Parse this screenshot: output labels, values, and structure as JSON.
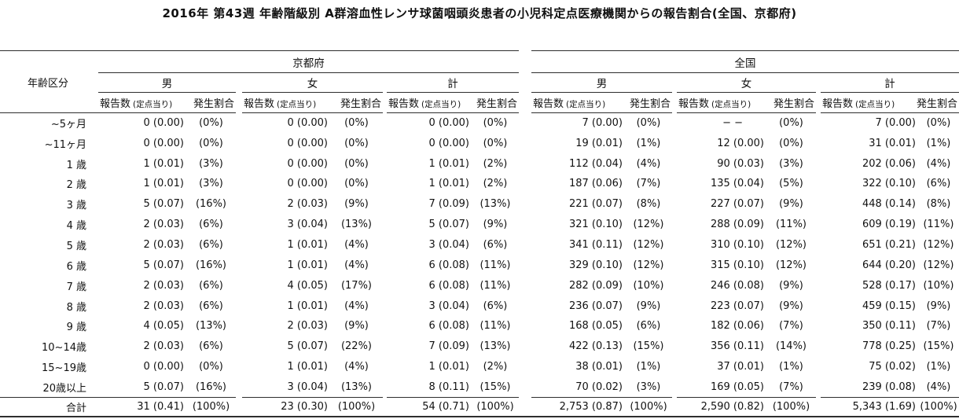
{
  "title": "2016年 第43週 年齢階級別 A群溶血性レンサ球菌咽頭炎患者の小児科定点医療機関からの報告割合(全国、京都府)",
  "table": {
    "header": {
      "age": "年齢区分",
      "regions": [
        "京都府",
        "全国"
      ],
      "genders": [
        "男",
        "女",
        "計"
      ],
      "count": "報告数",
      "count_sub": "(定点当り)",
      "pct": "発生割合"
    },
    "rows": [
      {
        "age": "~5ヶ月",
        "cells": [
          [
            "0 (0.00)",
            "(0%)"
          ],
          [
            "0 (0.00)",
            "(0%)"
          ],
          [
            "0 (0.00)",
            "(0%)"
          ],
          [
            "7 (0.00)",
            "(0%)"
          ],
          [
            "− −",
            "(0%)"
          ],
          [
            "7 (0.00)",
            "(0%)"
          ]
        ]
      },
      {
        "age": "~11ヶ月",
        "cells": [
          [
            "0 (0.00)",
            "(0%)"
          ],
          [
            "0 (0.00)",
            "(0%)"
          ],
          [
            "0 (0.00)",
            "(0%)"
          ],
          [
            "19 (0.01)",
            "(1%)"
          ],
          [
            "12 (0.00)",
            "(0%)"
          ],
          [
            "31 (0.01)",
            "(1%)"
          ]
        ]
      },
      {
        "age": "1 歳",
        "cells": [
          [
            "1 (0.01)",
            "(3%)"
          ],
          [
            "0 (0.00)",
            "(0%)"
          ],
          [
            "1 (0.01)",
            "(2%)"
          ],
          [
            "112 (0.04)",
            "(4%)"
          ],
          [
            "90 (0.03)",
            "(3%)"
          ],
          [
            "202 (0.06)",
            "(4%)"
          ]
        ]
      },
      {
        "age": "2 歳",
        "cells": [
          [
            "1 (0.01)",
            "(3%)"
          ],
          [
            "0 (0.00)",
            "(0%)"
          ],
          [
            "1 (0.01)",
            "(2%)"
          ],
          [
            "187 (0.06)",
            "(7%)"
          ],
          [
            "135 (0.04)",
            "(5%)"
          ],
          [
            "322 (0.10)",
            "(6%)"
          ]
        ]
      },
      {
        "age": "3 歳",
        "cells": [
          [
            "5 (0.07)",
            "(16%)"
          ],
          [
            "2 (0.03)",
            "(9%)"
          ],
          [
            "7 (0.09)",
            "(13%)"
          ],
          [
            "221 (0.07)",
            "(8%)"
          ],
          [
            "227 (0.07)",
            "(9%)"
          ],
          [
            "448 (0.14)",
            "(8%)"
          ]
        ]
      },
      {
        "age": "4 歳",
        "cells": [
          [
            "2 (0.03)",
            "(6%)"
          ],
          [
            "3 (0.04)",
            "(13%)"
          ],
          [
            "5 (0.07)",
            "(9%)"
          ],
          [
            "321 (0.10)",
            "(12%)"
          ],
          [
            "288 (0.09)",
            "(11%)"
          ],
          [
            "609 (0.19)",
            "(11%)"
          ]
        ]
      },
      {
        "age": "5 歳",
        "cells": [
          [
            "2 (0.03)",
            "(6%)"
          ],
          [
            "1 (0.01)",
            "(4%)"
          ],
          [
            "3 (0.04)",
            "(6%)"
          ],
          [
            "341 (0.11)",
            "(12%)"
          ],
          [
            "310 (0.10)",
            "(12%)"
          ],
          [
            "651 (0.21)",
            "(12%)"
          ]
        ]
      },
      {
        "age": "6 歳",
        "cells": [
          [
            "5 (0.07)",
            "(16%)"
          ],
          [
            "1 (0.01)",
            "(4%)"
          ],
          [
            "6 (0.08)",
            "(11%)"
          ],
          [
            "329 (0.10)",
            "(12%)"
          ],
          [
            "315 (0.10)",
            "(12%)"
          ],
          [
            "644 (0.20)",
            "(12%)"
          ]
        ]
      },
      {
        "age": "7 歳",
        "cells": [
          [
            "2 (0.03)",
            "(6%)"
          ],
          [
            "4 (0.05)",
            "(17%)"
          ],
          [
            "6 (0.08)",
            "(11%)"
          ],
          [
            "282 (0.09)",
            "(10%)"
          ],
          [
            "246 (0.08)",
            "(9%)"
          ],
          [
            "528 (0.17)",
            "(10%)"
          ]
        ]
      },
      {
        "age": "8 歳",
        "cells": [
          [
            "2 (0.03)",
            "(6%)"
          ],
          [
            "1 (0.01)",
            "(4%)"
          ],
          [
            "3 (0.04)",
            "(6%)"
          ],
          [
            "236 (0.07)",
            "(9%)"
          ],
          [
            "223 (0.07)",
            "(9%)"
          ],
          [
            "459 (0.15)",
            "(9%)"
          ]
        ]
      },
      {
        "age": "9 歳",
        "cells": [
          [
            "4 (0.05)",
            "(13%)"
          ],
          [
            "2 (0.03)",
            "(9%)"
          ],
          [
            "6 (0.08)",
            "(11%)"
          ],
          [
            "168 (0.05)",
            "(6%)"
          ],
          [
            "182 (0.06)",
            "(7%)"
          ],
          [
            "350 (0.11)",
            "(7%)"
          ]
        ]
      },
      {
        "age": "10~14歳",
        "cells": [
          [
            "2 (0.03)",
            "(6%)"
          ],
          [
            "5 (0.07)",
            "(22%)"
          ],
          [
            "7 (0.09)",
            "(13%)"
          ],
          [
            "422 (0.13)",
            "(15%)"
          ],
          [
            "356 (0.11)",
            "(14%)"
          ],
          [
            "778 (0.25)",
            "(15%)"
          ]
        ]
      },
      {
        "age": "15~19歳",
        "cells": [
          [
            "0 (0.00)",
            "(0%)"
          ],
          [
            "1 (0.01)",
            "(4%)"
          ],
          [
            "1 (0.01)",
            "(2%)"
          ],
          [
            "38 (0.01)",
            "(1%)"
          ],
          [
            "37 (0.01)",
            "(1%)"
          ],
          [
            "75 (0.02)",
            "(1%)"
          ]
        ]
      },
      {
        "age": "20歳以上",
        "cells": [
          [
            "5 (0.07)",
            "(16%)"
          ],
          [
            "3 (0.04)",
            "(13%)"
          ],
          [
            "8 (0.11)",
            "(15%)"
          ],
          [
            "70 (0.02)",
            "(3%)"
          ],
          [
            "169 (0.05)",
            "(7%)"
          ],
          [
            "239 (0.08)",
            "(4%)"
          ]
        ]
      }
    ],
    "total_row": {
      "age": "合計",
      "cells": [
        [
          "31 (0.41)",
          "(100%)"
        ],
        [
          "23 (0.30)",
          "(100%)"
        ],
        [
          "54 (0.71)",
          "(100%)"
        ],
        [
          "2,753 (0.87)",
          "(100%)"
        ],
        [
          "2,590 (0.82)",
          "(100%)"
        ],
        [
          "5,343 (1.69)",
          "(100%)"
        ]
      ]
    }
  }
}
